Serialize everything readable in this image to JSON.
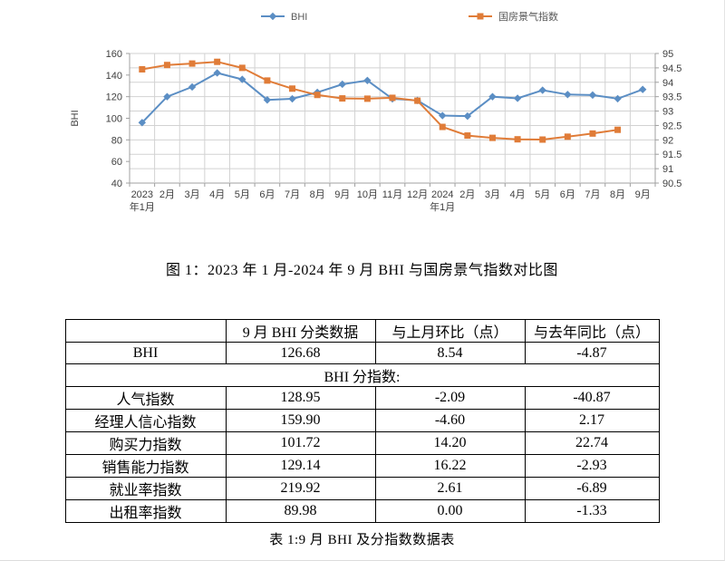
{
  "figure": {
    "title": "图 1：2023 年 1 月-2024 年 9 月 BHI 与国房景气指数对比图"
  },
  "chart_data": {
    "type": "line",
    "title": "2023年1月-2024年9月 BHI 与国房景气指数对比图",
    "categories": [
      "2023年1月",
      "2月",
      "3月",
      "4月",
      "5月",
      "6月",
      "7月",
      "8月",
      "9月",
      "10月",
      "11月",
      "12月",
      "2024年1月",
      "2月",
      "3月",
      "4月",
      "5月",
      "6月",
      "7月",
      "8月",
      "9月"
    ],
    "series": [
      {
        "name": "BHI",
        "axis": "left",
        "color": "#5B8EC4",
        "marker": "diamond",
        "values": [
          96,
          120,
          129,
          142,
          136,
          117,
          118,
          124,
          131.5,
          135,
          118,
          116.5,
          102.5,
          102,
          120,
          118.5,
          126,
          122,
          121.5,
          118.1,
          126.68
        ]
      },
      {
        "name": "国房景气指数",
        "axis": "right",
        "color": "#E07C38",
        "marker": "square",
        "values": [
          94.45,
          94.6,
          94.65,
          94.71,
          94.5,
          94.06,
          93.78,
          93.56,
          93.44,
          93.43,
          93.46,
          93.36,
          92.45,
          92.15,
          92.07,
          92.02,
          92.01,
          92.11,
          92.22,
          92.35,
          null
        ]
      }
    ],
    "left_axis": {
      "title": "BHI",
      "min": 40,
      "max": 160,
      "tick_step": 20
    },
    "right_axis": {
      "min": 90.5,
      "max": 95,
      "tick_step": 0.5
    },
    "legend_position": "top",
    "grid": true,
    "grid_color": "#d2d2d2",
    "axis_color": "#a0a0a0",
    "tick_text_color": "#404040"
  },
  "table": {
    "headers": [
      "",
      "9 月 BHI 分类数据",
      "与上月环比（点）",
      "与去年同比（点）"
    ],
    "bhi_row": {
      "label": "BHI",
      "value": "126.68",
      "mom": "8.54",
      "yoy": "-4.87"
    },
    "section_label": "BHI 分指数:",
    "rows": [
      {
        "label": "人气指数",
        "value": "128.95",
        "mom": "-2.09",
        "yoy": "-40.87"
      },
      {
        "label": "经理人信心指数",
        "value": "159.90",
        "mom": "-4.60",
        "yoy": "2.17"
      },
      {
        "label": "购买力指数",
        "value": "101.72",
        "mom": "14.20",
        "yoy": "22.74"
      },
      {
        "label": "销售能力指数",
        "value": "129.14",
        "mom": "16.22",
        "yoy": "-2.93"
      },
      {
        "label": "就业率指数",
        "value": "219.92",
        "mom": "2.61",
        "yoy": "-6.89"
      },
      {
        "label": "出租率指数",
        "value": "89.98",
        "mom": "0.00",
        "yoy": "-1.33"
      }
    ],
    "caption": "表 1:9 月 BHI 及分指数数据表"
  }
}
